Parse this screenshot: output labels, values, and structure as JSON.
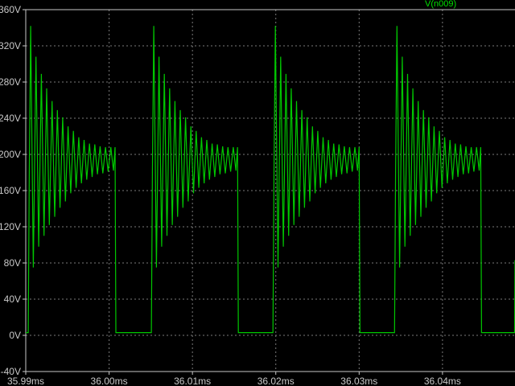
{
  "chart_data": {
    "type": "line",
    "title": "",
    "xlabel": "",
    "ylabel": "",
    "xlim": [
      35.99,
      36.0487
    ],
    "ylim": [
      -40,
      360
    ],
    "x_unit": "ms",
    "y_unit": "V",
    "x_ticks": [
      "35.99ms",
      "36.00ms",
      "36.01ms",
      "36.02ms",
      "36.03ms",
      "36.04ms"
    ],
    "x_tick_values": [
      35.99,
      36.0,
      36.01,
      36.02,
      36.03,
      36.04
    ],
    "y_ticks": [
      "-40V",
      "0V",
      "40V",
      "80V",
      "120V",
      "160V",
      "200V",
      "240V",
      "280V",
      "320V",
      "360V"
    ],
    "y_tick_values": [
      -40,
      0,
      40,
      80,
      120,
      160,
      200,
      240,
      280,
      320,
      360
    ],
    "grid": true,
    "legend_placement": "top-right",
    "background": "#000000",
    "grid_color": "#7a7a7a",
    "series": [
      {
        "name": "V(n009)",
        "color": "#00c800",
        "low_level_V": 3,
        "pulse_rise_ms": [
          35.9903,
          36.00507,
          36.01966,
          36.03425,
          36.04865
        ],
        "pulse_fall_ms": [
          36.00072,
          36.01541,
          36.03,
          36.04459
        ],
        "ring_peaks_V": [
          342,
          308,
          289,
          273,
          259,
          249,
          241,
          231,
          226,
          219,
          216,
          212,
          211,
          209,
          208,
          208
        ],
        "ring_troughs_V": [
          75,
          98,
          110,
          122,
          131,
          141,
          148,
          157,
          163,
          168,
          172,
          175,
          178,
          179,
          181,
          182
        ]
      }
    ]
  }
}
